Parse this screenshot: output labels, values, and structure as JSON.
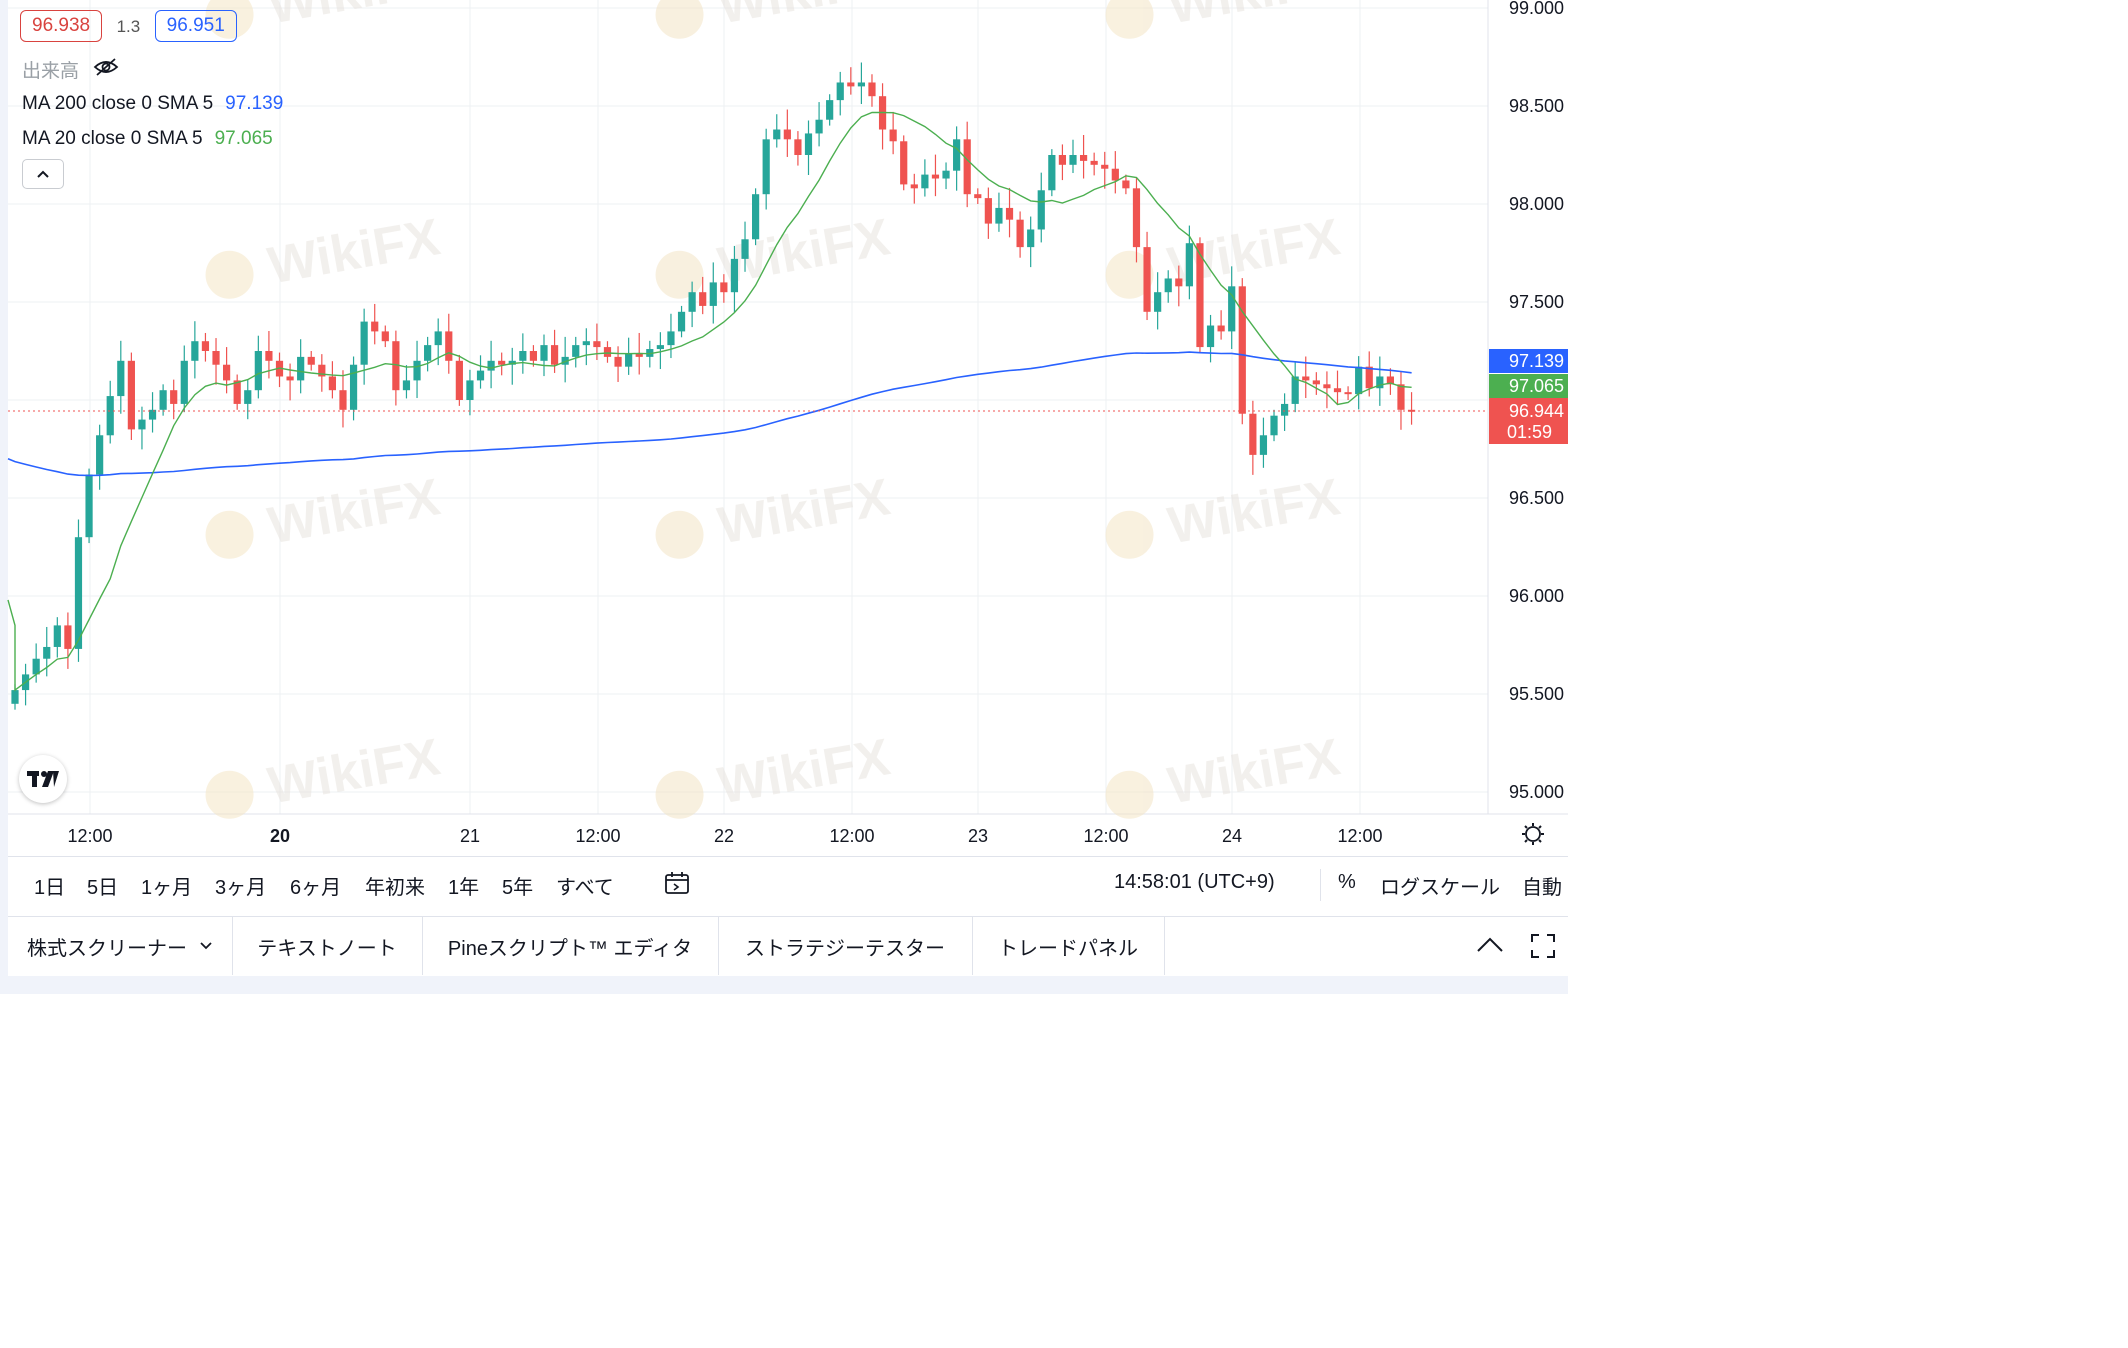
{
  "legend": {
    "sell_price": "96.938",
    "spread": "1.3",
    "buy_price": "96.951",
    "volume_label": "出来高",
    "ma200_label": "MA 200 close 0 SMA 5",
    "ma200_value": "97.139",
    "ma20_label": "MA 20 close 0 SMA 5",
    "ma20_value": "97.065"
  },
  "watermark": "WikiFX",
  "colors": {
    "up": "#26a69a",
    "down": "#ef5350",
    "ma200": "#2962ff",
    "ma20": "#4caf50",
    "grid": "#eef0f3"
  },
  "price_axis": {
    "labels": [
      "99.000",
      "98.500",
      "98.000",
      "97.500",
      "96.500",
      "96.000",
      "95.500",
      "95.000"
    ],
    "tags": {
      "ma200": "97.139",
      "ma20": "97.065",
      "last": "96.944",
      "countdown": "01:59"
    }
  },
  "time_axis": {
    "labels": [
      "12:00",
      "20",
      "21",
      "12:00",
      "22",
      "12:00",
      "23",
      "12:00",
      "24",
      "12:00"
    ],
    "bold": [
      false,
      true,
      false,
      false,
      false,
      false,
      false,
      false,
      false,
      false
    ]
  },
  "range_bar": {
    "items": [
      "1日",
      "5日",
      "1ヶ月",
      "3ヶ月",
      "6ヶ月",
      "年初来",
      "1年",
      "5年",
      "すべて"
    ],
    "time": "14:58:01 (UTC+9)",
    "percent": "%",
    "log_scale": "ログスケール",
    "auto": "自動"
  },
  "bottom_tabs": [
    "株式スクリーナー",
    "テキストノート",
    "Pineスクリプト™ エディタ",
    "ストラテジーテスター",
    "トレードパネル"
  ],
  "chart_data": {
    "type": "candlestick",
    "ylim": [
      94.9,
      99.0
    ],
    "x_tick_labels": [
      "12:00",
      "20",
      "21",
      "12:00",
      "22",
      "12:00",
      "23",
      "12:00",
      "24",
      "12:00"
    ],
    "candles_close": [
      95.52,
      95.6,
      95.68,
      95.74,
      95.85,
      95.73,
      96.3,
      96.62,
      96.82,
      97.02,
      97.2,
      96.85,
      96.9,
      96.95,
      97.05,
      96.98,
      97.2,
      97.3,
      97.25,
      97.18,
      97.1,
      96.98,
      97.05,
      97.25,
      97.2,
      97.12,
      97.1,
      97.22,
      97.18,
      97.12,
      97.05,
      96.95,
      97.18,
      97.4,
      97.35,
      97.3,
      97.05,
      97.1,
      97.2,
      97.28,
      97.35,
      97.2,
      97.0,
      97.1,
      97.15,
      97.2,
      97.18,
      97.2,
      97.25,
      97.2,
      97.28,
      97.18,
      97.22,
      97.28,
      97.3,
      97.27,
      97.22,
      97.17,
      97.24,
      97.22,
      97.26,
      97.28,
      97.35,
      97.45,
      97.55,
      97.48,
      97.6,
      97.55,
      97.72,
      97.82,
      98.05,
      98.33,
      98.38,
      98.33,
      98.25,
      98.36,
      98.43,
      98.53,
      98.62,
      98.6,
      98.62,
      98.55,
      98.38,
      98.32,
      98.1,
      98.08,
      98.15,
      98.13,
      98.17,
      98.33,
      98.05,
      98.03,
      97.9,
      97.98,
      97.92,
      97.78,
      97.87,
      98.07,
      98.25,
      98.2,
      98.25,
      98.22,
      98.2,
      98.18,
      98.12,
      98.08,
      97.78,
      97.45,
      97.55,
      97.62,
      97.58,
      97.8,
      97.27,
      97.38,
      97.35,
      97.58,
      96.93,
      96.72,
      96.82,
      96.92,
      96.98,
      97.12,
      97.1,
      97.08,
      97.06,
      97.04,
      97.03,
      97.17,
      97.06,
      97.12,
      97.08,
      96.95,
      96.94
    ],
    "series": [
      {
        "name": "MA 200 close 0 SMA 5",
        "last": 97.139
      },
      {
        "name": "MA 20 close 0 SMA 5",
        "last": 97.065
      }
    ],
    "last_price": 96.944
  }
}
